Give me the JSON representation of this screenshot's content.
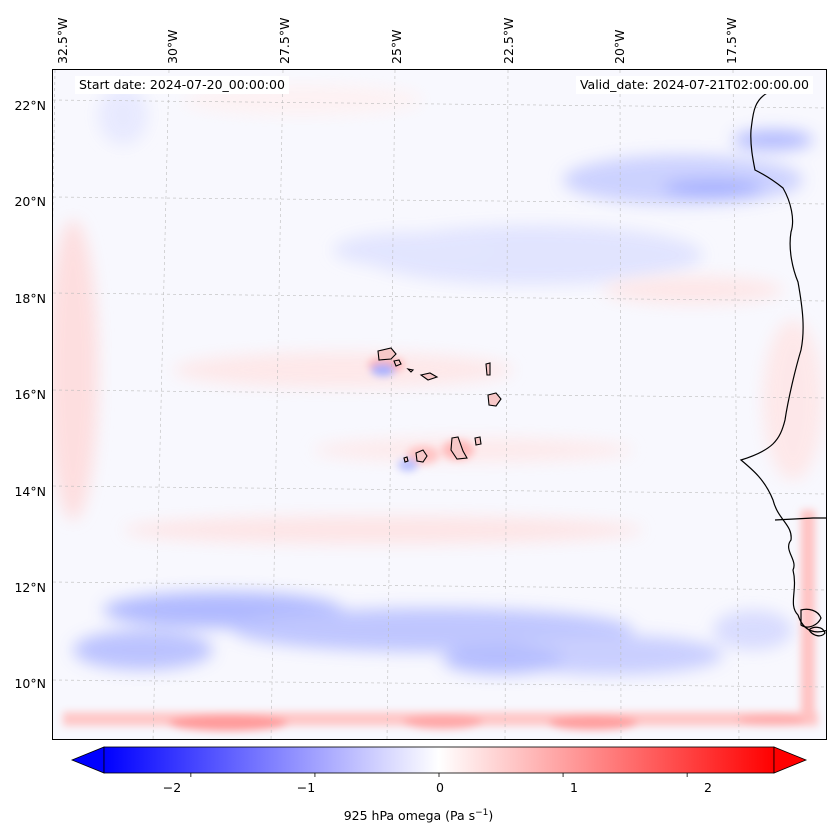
{
  "map": {
    "start_date": "Start date: 2024-07-20_00:00:00",
    "valid_date": "Valid_date: 2024-07-21T02:00:00.00",
    "lon_labels": [
      "32.5°W",
      "30°W",
      "27.5°W",
      "25°W",
      "22.5°W",
      "20°W",
      "17.5°W"
    ],
    "lat_labels": [
      "22°N",
      "20°N",
      "18°N",
      "16°N",
      "14°N",
      "12°N",
      "10°N"
    ],
    "coastline_color": "#000000",
    "gridline_color": "#bbbbbb"
  },
  "colorbar": {
    "label": "925 hPa omega (Pa s",
    "label_exponent": "−1",
    "label_close": ")",
    "ticks": [
      "−2",
      "−1",
      "0",
      "1",
      "2"
    ],
    "range": [
      -2.7,
      2.7
    ],
    "colormap": "bwr",
    "low_color": "#0000ff",
    "mid_color": "#ffffff",
    "high_color": "#ff0000"
  }
}
